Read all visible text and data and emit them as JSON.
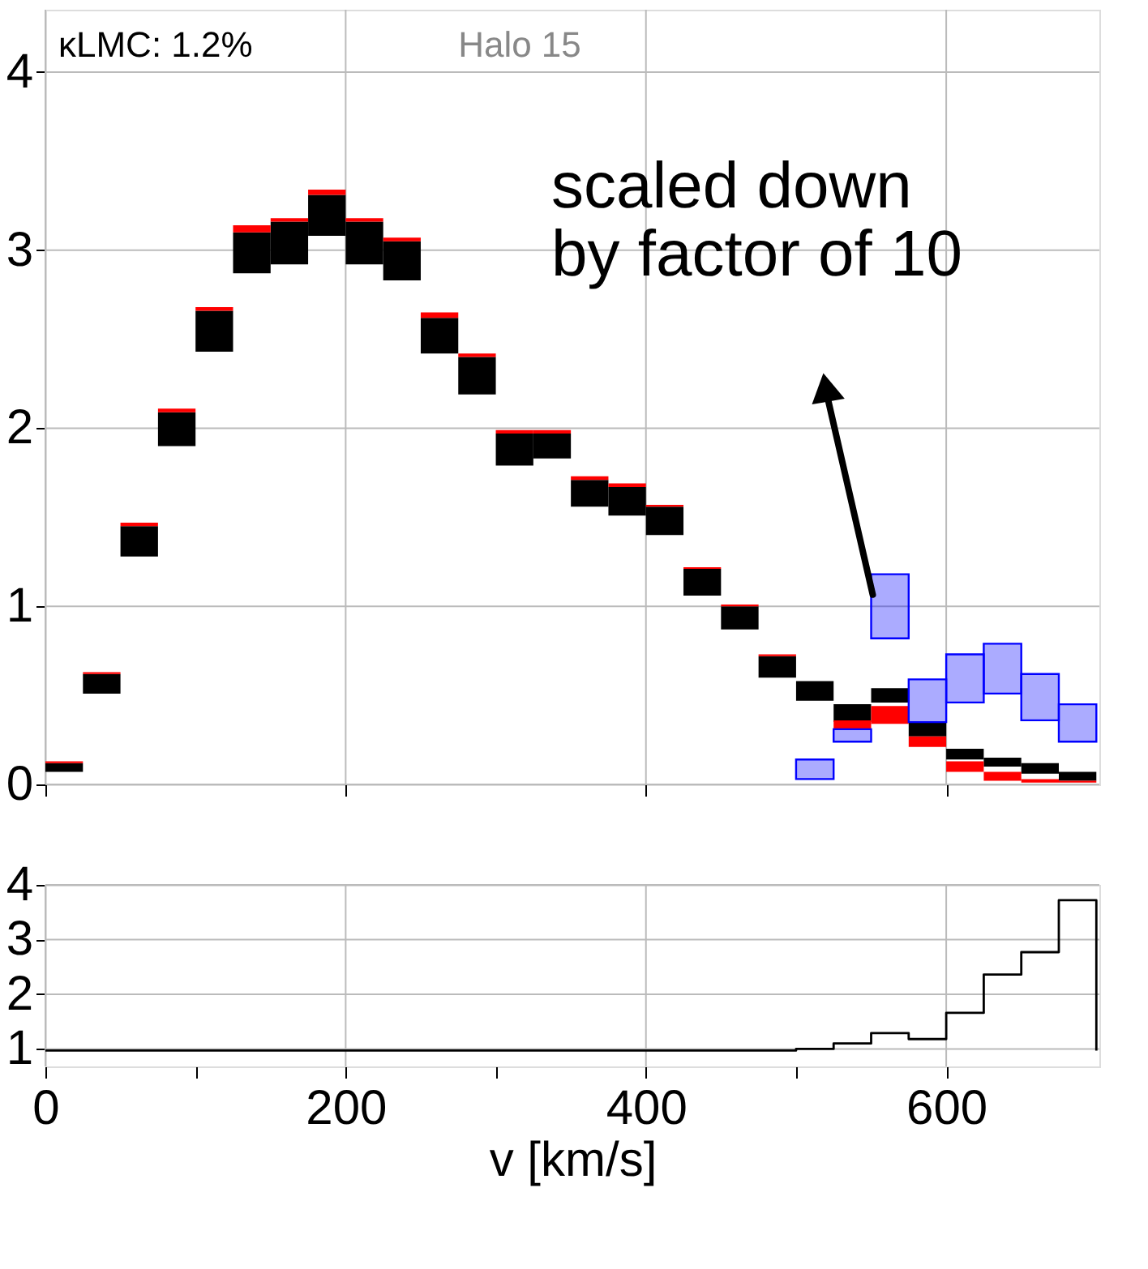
{
  "chart_data": [
    {
      "type": "bar",
      "x": [
        12.5,
        37.5,
        62.5,
        87.5,
        112.5,
        137.5,
        162.5,
        187.5,
        212.5,
        237.5,
        262.5,
        287.5,
        312.5,
        337.5,
        362.5,
        387.5,
        412.5,
        437.5,
        462.5,
        487.5,
        512.5,
        537.5,
        562.5,
        587.5,
        612.5,
        637.5,
        662.5,
        687.5
      ],
      "series": [
        {
          "color": "#000000",
          "base": [
            0.07,
            0.51,
            1.28,
            1.9,
            2.43,
            2.87,
            2.92,
            3.08,
            2.92,
            2.83,
            2.42,
            2.19,
            1.79,
            1.83,
            1.56,
            1.51,
            1.4,
            1.06,
            0.87,
            0.6,
            0.47,
            0.35,
            0.46,
            0.27,
            0.14,
            0.1,
            0.06,
            0.02
          ],
          "values": [
            0.05,
            0.11,
            0.17,
            0.19,
            0.23,
            0.23,
            0.24,
            0.23,
            0.24,
            0.22,
            0.2,
            0.21,
            0.18,
            0.14,
            0.15,
            0.16,
            0.16,
            0.15,
            0.13,
            0.12,
            0.11,
            0.1,
            0.08,
            0.08,
            0.06,
            0.05,
            0.06,
            0.05
          ]
        },
        {
          "color": "#ff0000",
          "base": [
            0.12,
            0.62,
            1.45,
            2.09,
            2.66,
            3.1,
            3.16,
            3.31,
            3.16,
            3.05,
            2.62,
            2.4,
            1.97,
            1.97,
            1.71,
            1.67,
            1.56,
            1.21,
            1.0,
            0.72,
            null,
            0.31,
            0.34,
            0.21,
            0.07,
            0.02,
            0.01,
            0.01
          ],
          "values": [
            0.01,
            0.01,
            0.02,
            0.02,
            0.02,
            0.04,
            0.02,
            0.03,
            0.02,
            0.02,
            0.03,
            0.02,
            0.02,
            0.02,
            0.02,
            0.02,
            0.01,
            0.01,
            0.01,
            0.01,
            null,
            0.05,
            0.1,
            0.06,
            0.06,
            0.05,
            0.02,
            0.01
          ]
        },
        {
          "color": "#0000ff",
          "base": [
            null,
            null,
            null,
            null,
            null,
            null,
            null,
            null,
            null,
            null,
            null,
            null,
            null,
            null,
            null,
            null,
            null,
            null,
            null,
            null,
            0.03,
            0.24,
            0.82,
            0.35,
            0.46,
            0.51,
            0.36,
            0.24
          ],
          "values": [
            null,
            null,
            null,
            null,
            null,
            null,
            null,
            null,
            null,
            null,
            null,
            null,
            null,
            null,
            null,
            null,
            null,
            null,
            null,
            null,
            0.11,
            0.07,
            0.36,
            0.24,
            0.27,
            0.28,
            0.26,
            0.21
          ]
        }
      ],
      "annotations": [
        "κLMC: 1.2%",
        "Halo 15",
        "scaled down by factor of 10"
      ],
      "xlim": [
        0,
        702
      ],
      "ylim": [
        0,
        4.35
      ],
      "xticks": [
        0,
        200,
        400,
        600
      ],
      "yticks": [
        0,
        1,
        2,
        3,
        4
      ],
      "grid": true,
      "tick_labels": "y"
    },
    {
      "type": "step",
      "x": [
        0,
        25,
        50,
        75,
        100,
        125,
        150,
        175,
        200,
        225,
        250,
        275,
        300,
        325,
        350,
        375,
        400,
        425,
        450,
        475,
        500,
        525,
        550,
        575,
        600,
        625,
        650,
        675,
        700
      ],
      "values": [
        0.97,
        0.97,
        0.97,
        0.97,
        0.97,
        0.97,
        0.97,
        0.97,
        0.97,
        0.97,
        0.97,
        0.97,
        0.97,
        0.97,
        0.97,
        0.97,
        0.97,
        0.97,
        0.97,
        0.97,
        1.0,
        1.1,
        1.29,
        1.18,
        1.66,
        2.36,
        2.77,
        3.72,
        0.97
      ],
      "xlabel": "v [km/s]",
      "xlim": [
        0,
        702
      ],
      "ylim": [
        0.68,
        4
      ],
      "xticks": [
        0,
        {
          "value": 100,
          "label": null
        },
        200,
        {
          "value": 300,
          "label": null
        },
        400,
        {
          "value": 500,
          "label": null
        },
        600
      ],
      "yticks": [
        1,
        2,
        3,
        4
      ],
      "grid": true
    }
  ]
}
